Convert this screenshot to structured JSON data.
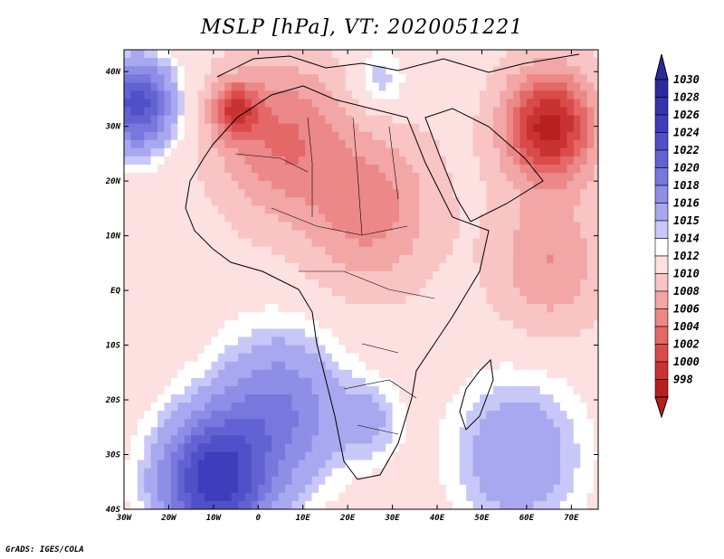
{
  "title": "MSLP [hPa], VT: 2020051221",
  "credit": "GrADS: IGES/COLA",
  "map": {
    "variable": "MSLP",
    "units": "hPa",
    "valid_time": "2020051221",
    "lon_range": [
      -30,
      76
    ],
    "lat_range": [
      -40,
      44
    ],
    "lon_ticks": [
      {
        "value": -30,
        "label": "30W"
      },
      {
        "value": -20,
        "label": "20W"
      },
      {
        "value": -10,
        "label": "10W"
      },
      {
        "value": 0,
        "label": "0"
      },
      {
        "value": 10,
        "label": "10E"
      },
      {
        "value": 20,
        "label": "20E"
      },
      {
        "value": 30,
        "label": "30E"
      },
      {
        "value": 40,
        "label": "40E"
      },
      {
        "value": 50,
        "label": "50E"
      },
      {
        "value": 60,
        "label": "60E"
      },
      {
        "value": 70,
        "label": "70E"
      }
    ],
    "lat_ticks": [
      {
        "value": 40,
        "label": "40N"
      },
      {
        "value": 30,
        "label": "30N"
      },
      {
        "value": 20,
        "label": "20N"
      },
      {
        "value": 10,
        "label": "10N"
      },
      {
        "value": 0,
        "label": "EQ"
      },
      {
        "value": -10,
        "label": "10S"
      },
      {
        "value": -20,
        "label": "20S"
      },
      {
        "value": -30,
        "label": "30S"
      },
      {
        "value": -40,
        "label": "40S"
      }
    ],
    "pressure_regions": [
      {
        "lon": -10,
        "lat": -35,
        "value": 1027,
        "spread": 12
      },
      {
        "lon": -27,
        "lat": 34,
        "value": 1025,
        "spread": 8
      },
      {
        "lon": 5,
        "lat": -22,
        "value": 1020,
        "spread": 14
      },
      {
        "lon": 58,
        "lat": -30,
        "value": 1018,
        "spread": 14
      },
      {
        "lon": 27,
        "lat": 38,
        "value": 1016,
        "spread": 6
      },
      {
        "lon": 25,
        "lat": -24,
        "value": 1016,
        "spread": 7
      },
      {
        "lon": 65,
        "lat": 30,
        "value": 999,
        "spread": 10
      },
      {
        "lon": 5,
        "lat": 28,
        "value": 1006,
        "spread": 14
      },
      {
        "lon": 25,
        "lat": 15,
        "value": 1007,
        "spread": 14
      },
      {
        "lon": 65,
        "lat": 5,
        "value": 1008,
        "spread": 12
      },
      {
        "lon": -5,
        "lat": 33,
        "value": 1004,
        "spread": 5
      }
    ],
    "background_value": 1013
  },
  "colorbar": {
    "levels": [
      1030,
      1028,
      1026,
      1024,
      1022,
      1020,
      1018,
      1016,
      1015,
      1014,
      1012,
      1010,
      1008,
      1006,
      1004,
      1002,
      1000,
      998
    ],
    "colors": [
      "#2a2a9c",
      "#3434ac",
      "#3e3ebd",
      "#5050c8",
      "#6262d3",
      "#7777dd",
      "#8e8ee7",
      "#a8a8f0",
      "#c8c8f8",
      "#ffffff",
      "#fde0e0",
      "#f9c4c4",
      "#f3a6a6",
      "#ec8888",
      "#e46868",
      "#da4a4a",
      "#c93232",
      "#b81f1f"
    ]
  }
}
